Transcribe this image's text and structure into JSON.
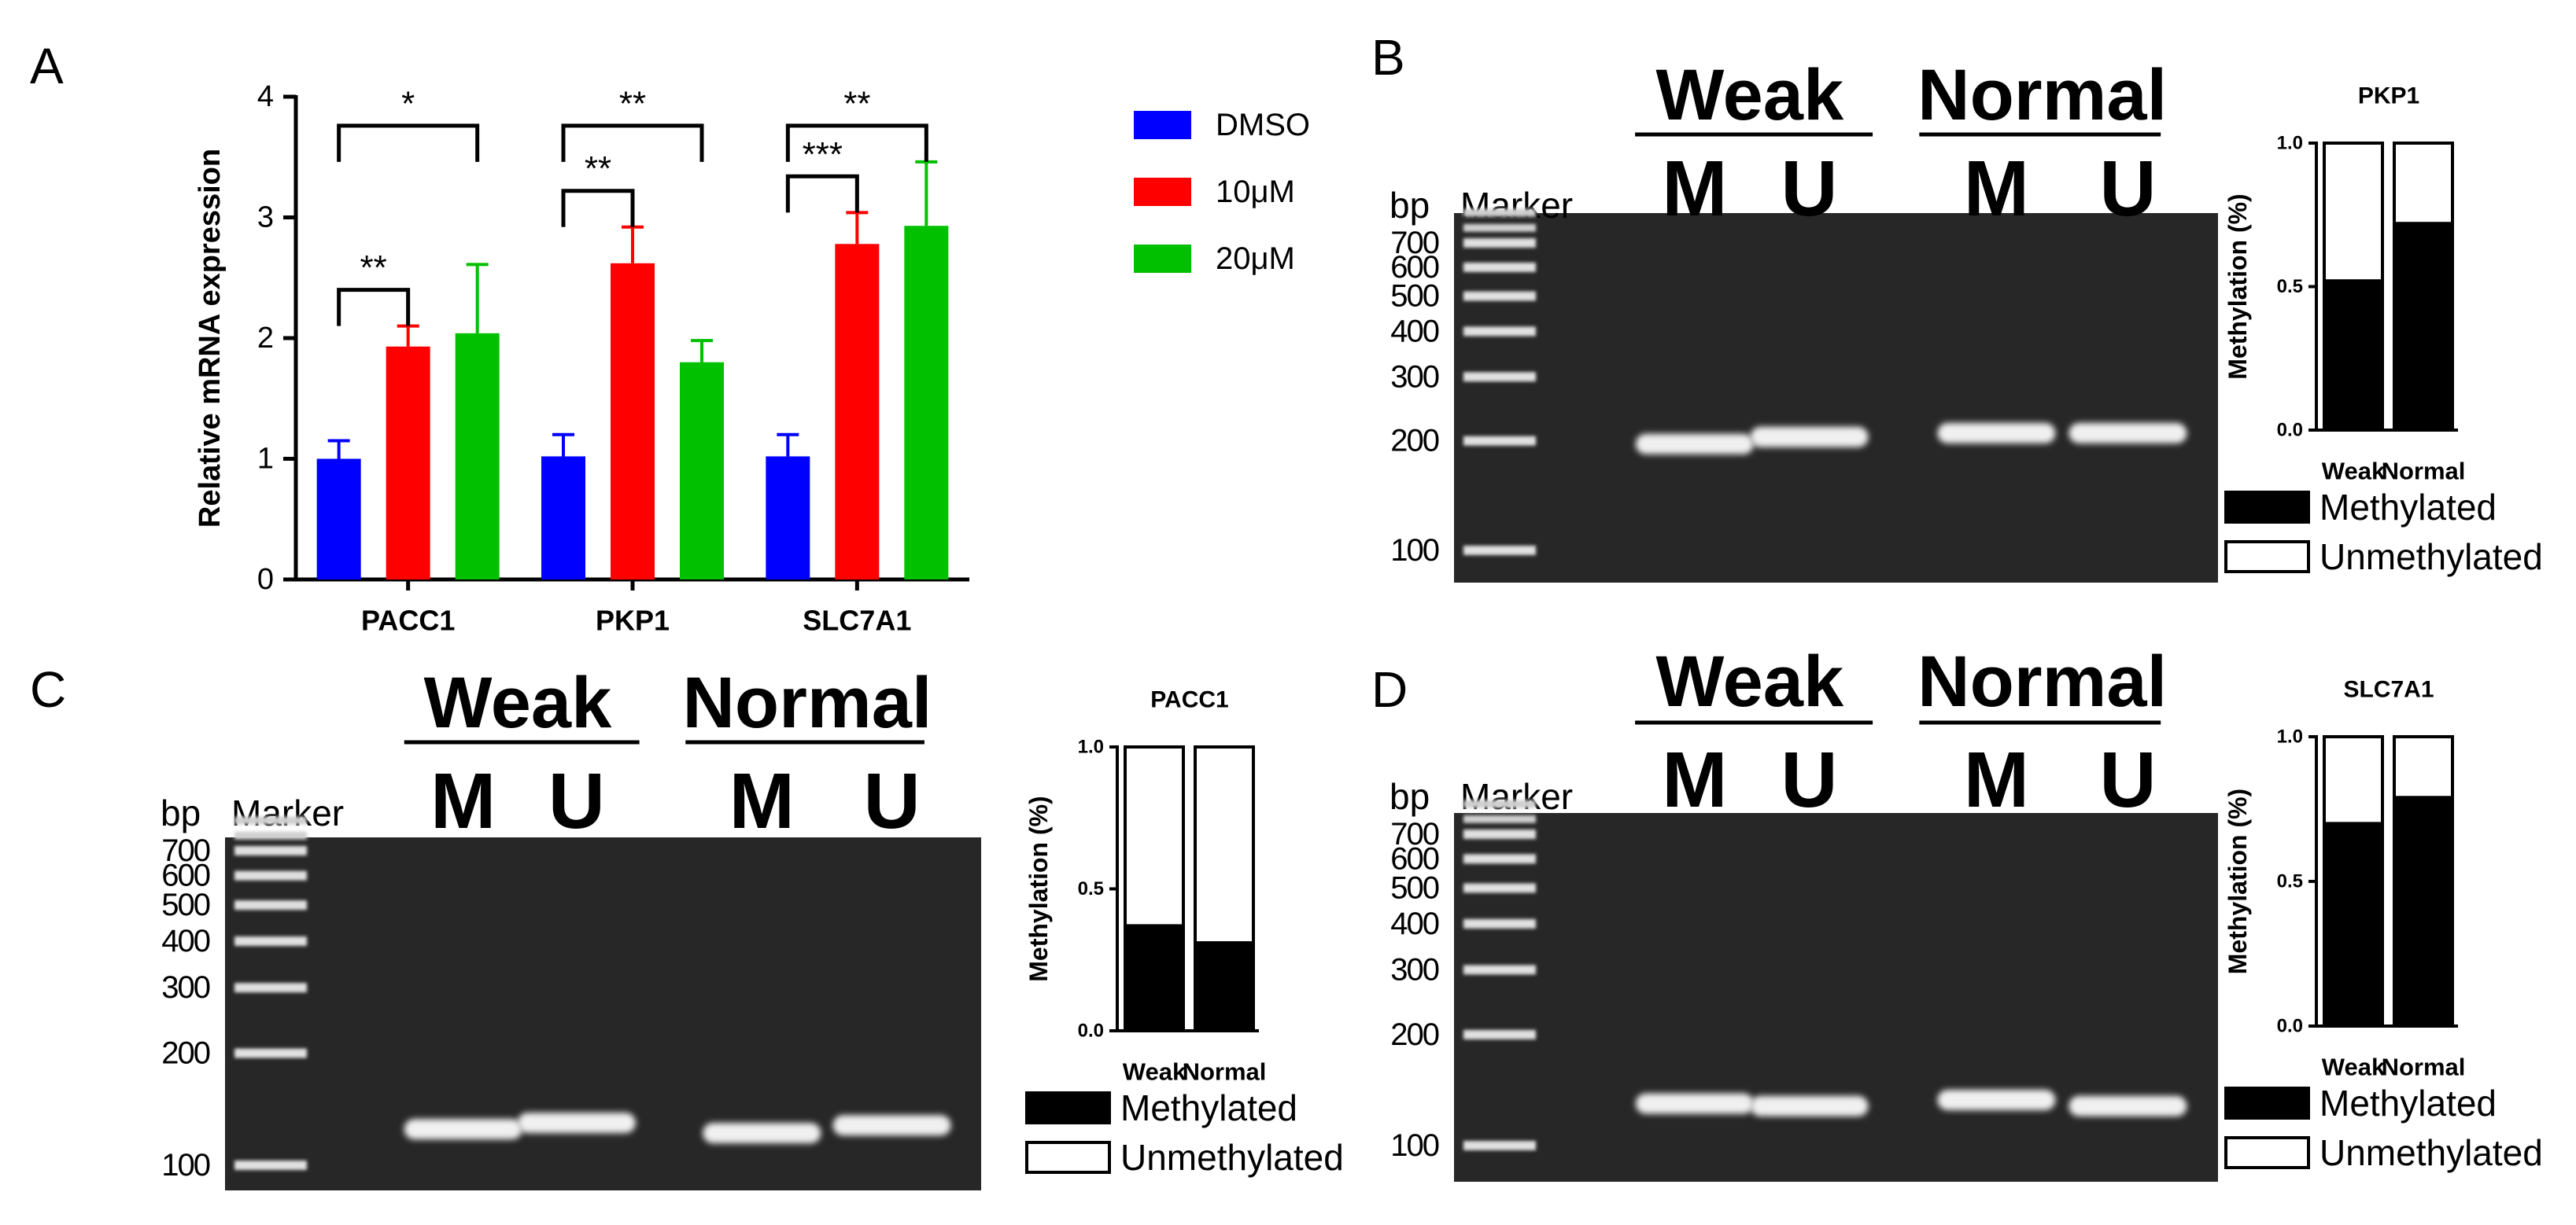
{
  "chart_data": [
    {
      "type": "bar",
      "panel": "A",
      "ylabel": "Relative mRNA expression",
      "categories": [
        "PACC1",
        "PKP1",
        "SLC7A1"
      ],
      "series": [
        {
          "name": "DMSO",
          "color": "#0000ff",
          "values": [
            1.0,
            1.02,
            1.02
          ],
          "errors": [
            0.15,
            0.18,
            0.18
          ]
        },
        {
          "name": "10μM",
          "color": "#ff0000",
          "values": [
            1.93,
            2.62,
            2.78
          ],
          "errors": [
            0.17,
            0.3,
            0.26
          ]
        },
        {
          "name": "20μM",
          "color": "#00c000",
          "values": [
            2.04,
            1.8,
            2.93
          ],
          "errors": [
            0.57,
            0.18,
            0.53
          ]
        }
      ],
      "significance": [
        {
          "category": 0,
          "series": [
            0,
            1
          ],
          "label": "**"
        },
        {
          "category": 0,
          "series": [
            0,
            2
          ],
          "label": "*"
        },
        {
          "category": 1,
          "series": [
            0,
            1
          ],
          "label": "**"
        },
        {
          "category": 1,
          "series": [
            0,
            2
          ],
          "label": "**"
        },
        {
          "category": 2,
          "series": [
            0,
            1
          ],
          "label": "***"
        },
        {
          "category": 2,
          "series": [
            0,
            2
          ],
          "label": "**"
        }
      ],
      "ylim": [
        0,
        4
      ],
      "yticks": [
        0,
        1,
        2,
        3,
        4
      ],
      "legend": "right"
    },
    {
      "type": "gel",
      "panel": "B",
      "groups": [
        "Weak",
        "Normal"
      ],
      "lanes": [
        "M",
        "U",
        "M",
        "U"
      ],
      "ylabel": "bp",
      "marker": "Marker",
      "values": [
        196,
        205,
        210,
        210
      ],
      "log_scale": true,
      "ylim": [
        100,
        700
      ],
      "yticks": [
        700,
        600,
        500,
        400,
        300,
        200,
        100
      ]
    },
    {
      "type": "stacked-bar",
      "title": "PKP1",
      "ylabel": "Methylation (%)",
      "categories": [
        "Weak",
        "Normal"
      ],
      "series": [
        {
          "name": "Methylated",
          "color": "#000000",
          "values": [
            0.52,
            0.72
          ]
        },
        {
          "name": "Unmethylated",
          "color": "#ffffff",
          "values": [
            0.48,
            0.28
          ]
        }
      ],
      "ylim": [
        0,
        1
      ],
      "yticks": [
        {
          "value": 0,
          "label": "0.0"
        },
        {
          "value": 0.5,
          "label": "0.5"
        },
        {
          "value": 1,
          "label": "1.0"
        }
      ]
    },
    {
      "type": "gel",
      "panel": "C",
      "groups": [
        "Weak",
        "Normal"
      ],
      "lanes": [
        "M",
        "U",
        "M",
        "U"
      ],
      "ylabel": "bp",
      "marker": "Marker",
      "values": [
        125,
        130,
        122,
        128
      ],
      "log_scale": true,
      "ylim": [
        100,
        700
      ],
      "yticks": [
        700,
        600,
        500,
        400,
        300,
        200,
        100
      ]
    },
    {
      "type": "stacked-bar",
      "title": "PACC1",
      "ylabel": "Methylation (%)",
      "categories": [
        "Weak",
        "Normal"
      ],
      "series": [
        {
          "name": "Methylated",
          "color": "#000000",
          "values": [
            0.37,
            0.31
          ]
        },
        {
          "name": "Unmethylated",
          "color": "#ffffff",
          "values": [
            0.63,
            0.69
          ]
        }
      ],
      "ylim": [
        0,
        1
      ],
      "yticks": [
        {
          "value": 0,
          "label": "0.0"
        },
        {
          "value": 0.5,
          "label": "0.5"
        },
        {
          "value": 1,
          "label": "1.0"
        }
      ]
    },
    {
      "type": "gel",
      "panel": "D",
      "groups": [
        "Weak",
        "Normal"
      ],
      "lanes": [
        "M",
        "U",
        "M",
        "U"
      ],
      "ylabel": "bp",
      "marker": "Marker",
      "values": [
        130,
        128,
        133,
        128
      ],
      "log_scale": true,
      "ylim": [
        100,
        700
      ],
      "yticks": [
        700,
        600,
        500,
        400,
        300,
        200,
        100
      ]
    },
    {
      "type": "stacked-bar",
      "title": "SLC7A1",
      "ylabel": "Methylation (%)",
      "categories": [
        "Weak",
        "Normal"
      ],
      "series": [
        {
          "name": "Methylated",
          "color": "#000000",
          "values": [
            0.7,
            0.79
          ]
        },
        {
          "name": "Unmethylated",
          "color": "#ffffff",
          "values": [
            0.3,
            0.21
          ]
        }
      ],
      "ylim": [
        0,
        1
      ],
      "yticks": [
        {
          "value": 0,
          "label": "0.0"
        },
        {
          "value": 0.5,
          "label": "0.5"
        },
        {
          "value": 1,
          "label": "1.0"
        }
      ]
    }
  ]
}
